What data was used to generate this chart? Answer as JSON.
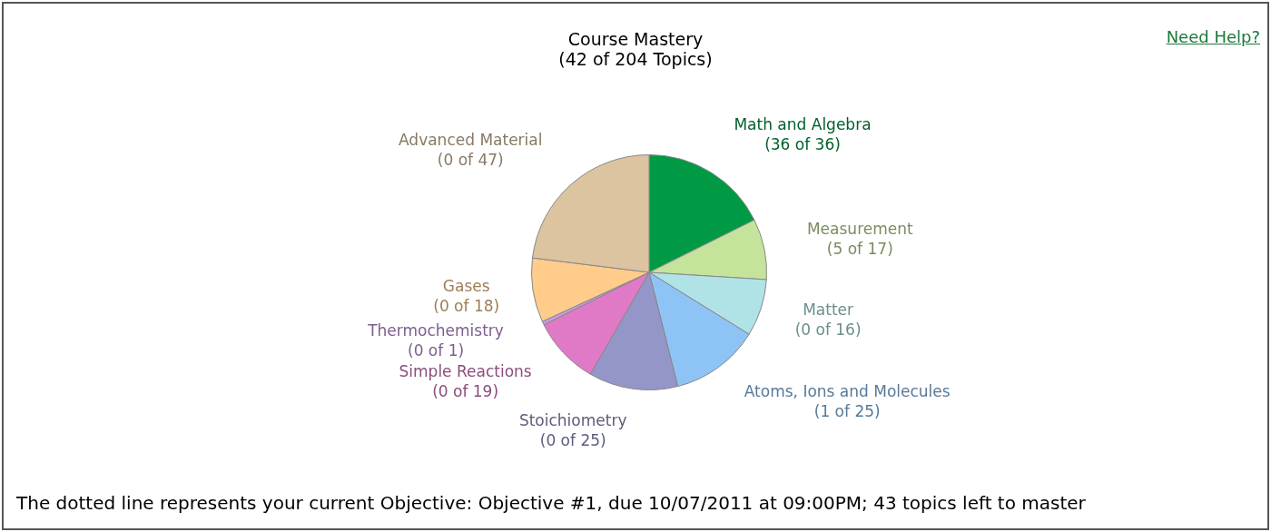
{
  "chart_data": {
    "type": "pie",
    "title": "Course Mastery",
    "subtitle": "(42 of 204 Topics)",
    "categories": [
      "Math and Algebra",
      "Measurement",
      "Matter",
      "Atoms, Ions and Molecules",
      "Stoichiometry",
      "Simple Reactions",
      "Thermochemistry",
      "Gases",
      "Advanced Material"
    ],
    "values": [
      36,
      17,
      16,
      25,
      25,
      19,
      1,
      18,
      47
    ],
    "value_labels": [
      "(36 of 36)",
      "(5 of 17)",
      "(0 of 16)",
      "(1 of 25)",
      "(0 of 25)",
      "(0 of 19)",
      "(0 of 1)",
      "(0 of 18)",
      "(0 of 47)"
    ],
    "colors": [
      "#009a44",
      "#c5e39b",
      "#b0e3e6",
      "#8ec4f5",
      "#9496c8",
      "#e07ac7",
      "#c99ae6",
      "#ffcc8c",
      "#dcc4a0"
    ],
    "legend": false,
    "annotations": [
      "Need Help?",
      "The dotted line represents your current Objective: Objective #1, due 10/07/2011 at 09:00PM; 43 topics left to master"
    ]
  }
}
